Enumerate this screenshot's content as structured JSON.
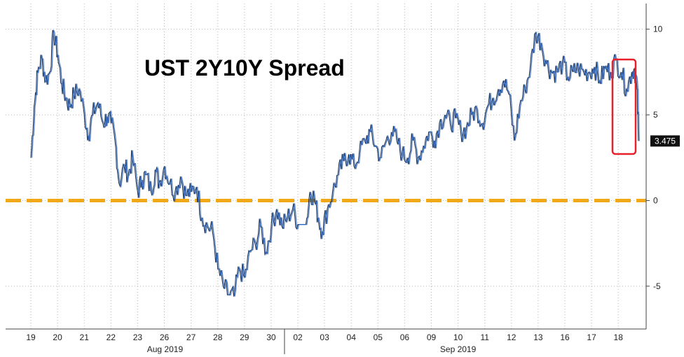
{
  "chart_data": {
    "type": "line",
    "title": "UST 2Y10Y Spread",
    "xlabel": "",
    "ylabel": "",
    "ylim": [
      -7.5,
      11.5
    ],
    "y_ticks": [
      10,
      5,
      0,
      -5
    ],
    "x_day_labels": [
      "19",
      "20",
      "21",
      "22",
      "23",
      "26",
      "27",
      "28",
      "29",
      "30",
      "02",
      "03",
      "04",
      "05",
      "06",
      "09",
      "10",
      "11",
      "12",
      "13",
      "16",
      "17",
      "18"
    ],
    "x_month_labels": [
      "Aug 2019",
      "Sep 2019"
    ],
    "zero_line": {
      "value": 0,
      "color": "#f0a818",
      "style": "dashed"
    },
    "last_value": 3.475,
    "last_value_label": "3.475",
    "highlight_box_color": "#e8202a",
    "series": [
      {
        "color": "#2a6dd6",
        "x": [
          0,
          0.12,
          0.25,
          0.4,
          0.55,
          0.7,
          0.85,
          1,
          1.15,
          1.3,
          1.45,
          1.6,
          1.8,
          2,
          2.15,
          2.3,
          2.5,
          2.7,
          2.85,
          3,
          3.15,
          3.3,
          3.5,
          3.65,
          3.8,
          4,
          4.15,
          4.3,
          4.5,
          4.65,
          4.8,
          5,
          5.2,
          5.4,
          5.6,
          5.8,
          6,
          6.2,
          6.4,
          6.6,
          6.8,
          7,
          7.2,
          7.4,
          7.6,
          7.8,
          8,
          8.2,
          8.4,
          8.6,
          8.8,
          9,
          9.2,
          9.4,
          9.6,
          9.8,
          10,
          10.1,
          10.2,
          10.3,
          10.45,
          10.6,
          10.75,
          10.9,
          11.1,
          11.3,
          11.5,
          11.7,
          11.9,
          12.1,
          12.3,
          12.5,
          12.7,
          12.9,
          13.1,
          13.3,
          13.5,
          13.7,
          13.9,
          14.1,
          14.3,
          14.5,
          14.7,
          14.9,
          15.1,
          15.3,
          15.5,
          15.7,
          15.9,
          16.1,
          16.3,
          16.5,
          16.7,
          16.9,
          17.1,
          17.3,
          17.5,
          17.7,
          17.9,
          18.1,
          18.3,
          18.5,
          18.7,
          18.9,
          19.1,
          19.3,
          19.5,
          19.7,
          19.9,
          20.1,
          20.3,
          20.5,
          20.7,
          20.9,
          21.1,
          21.3,
          21.5,
          21.7,
          21.9,
          22.1,
          22.3,
          22.5,
          22.6,
          22.7,
          22.75
        ],
        "values": [
          2.5,
          5.5,
          7.5,
          8.3,
          7,
          7.5,
          9.8,
          8.5,
          6.8,
          6,
          5.5,
          6.2,
          6.5,
          5,
          3.8,
          5,
          5.7,
          4.5,
          4.9,
          4.5,
          3.5,
          1,
          2,
          1.5,
          2.5,
          0.5,
          1.2,
          1.5,
          0.5,
          1.8,
          1,
          2,
          1,
          0.5,
          1.4,
          0.3,
          0.5,
          0.8,
          -1,
          -1.5,
          -1.8,
          -4,
          -5,
          -5.5,
          -5.6,
          -4,
          -4.5,
          -3,
          -2.5,
          -1.5,
          -3,
          -1.5,
          -0.5,
          -1.5,
          -1,
          -0.5,
          -1.4,
          -1.4,
          -1.4,
          -1.4,
          0.5,
          0.2,
          -1,
          -1.8,
          -0.5,
          0.5,
          1.5,
          2.3,
          2.7,
          2,
          2.8,
          3.5,
          4,
          3.2,
          2.5,
          3.5,
          4,
          3.5,
          2.7,
          2.5,
          3.5,
          2.5,
          3.2,
          4,
          3.5,
          4.5,
          5,
          4.5,
          4.8,
          4,
          4.2,
          5,
          5.3,
          4.5,
          5.5,
          6,
          6.5,
          7,
          6.2,
          3.5,
          5.5,
          6.5,
          7.8,
          9.8,
          9.2,
          8,
          7.5,
          7.5,
          8,
          7.2,
          7.5,
          7.7,
          7.5,
          7.5,
          7.8,
          7,
          7.7,
          7.5,
          8.2,
          7.5,
          6.5,
          7.5,
          7.7,
          6.5,
          3.475
        ]
      }
    ]
  }
}
